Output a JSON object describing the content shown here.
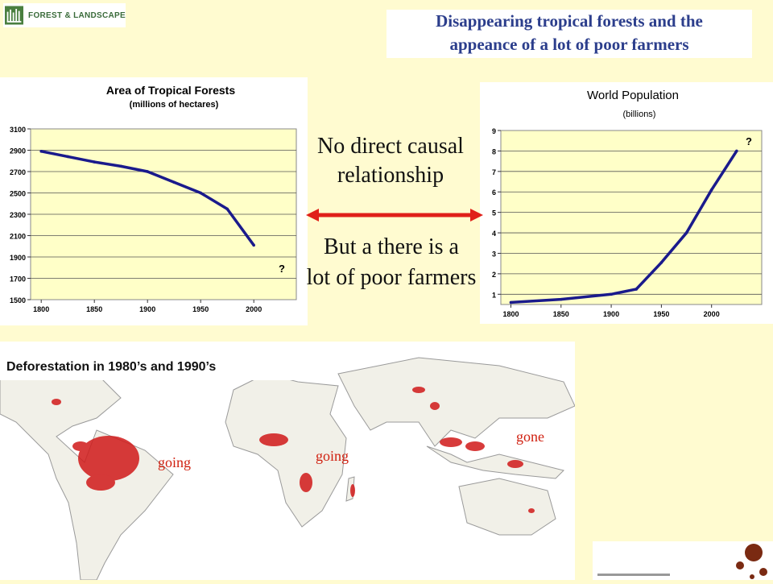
{
  "header": {
    "logo_text": "FOREST & LANDSCAPE",
    "title_line1": "Disappearing tropical forests and the",
    "title_line2": "appeance of a lot of poor farmers"
  },
  "middle": {
    "line1": "No direct causal",
    "line2": "relationship",
    "line3": "But a there is a",
    "line4": "lot of poor farmers"
  },
  "colors": {
    "background": "#fffbd0",
    "plot_bg": "#ffffc8",
    "series": "#1a1a8c",
    "title_text": "#2c3e8c",
    "arrow": "#e0201a",
    "map_labels": "#d02010"
  },
  "chart_data": [
    {
      "type": "line",
      "title": "Area of Tropical Forests",
      "subtitle": "(millions of hectares)",
      "x_ticks": [
        "1800",
        "1850",
        "1900",
        "1950",
        "2000"
      ],
      "y_ticks": [
        "3100",
        "2900",
        "2700",
        "2500",
        "2300",
        "2100",
        "1900",
        "1700",
        "1500"
      ],
      "xlim": [
        1790,
        2040
      ],
      "ylim": [
        1500,
        3100
      ],
      "grid": true,
      "annotation": "?",
      "series": [
        {
          "x": [
            1800,
            1825,
            1850,
            1875,
            1900,
            1925,
            1950,
            1975,
            2000
          ],
          "y": [
            2890,
            2840,
            2790,
            2750,
            2700,
            2600,
            2500,
            2350,
            2010
          ]
        }
      ]
    },
    {
      "type": "line",
      "title": "World Population",
      "subtitle": "(billions)",
      "x_ticks": [
        "1800",
        "1850",
        "1900",
        "1950",
        "2000"
      ],
      "y_ticks": [
        "9",
        "8",
        "7",
        "6",
        "5",
        "4",
        "3",
        "2",
        "1"
      ],
      "xlim": [
        1790,
        2050
      ],
      "ylim": [
        0.5,
        9
      ],
      "grid": true,
      "annotation": "?",
      "series": [
        {
          "x": [
            1800,
            1850,
            1900,
            1925,
            1950,
            1975,
            2000,
            2025
          ],
          "y": [
            0.6,
            0.75,
            1.0,
            1.25,
            2.55,
            4.0,
            6.1,
            8.0
          ]
        }
      ]
    }
  ],
  "map": {
    "title": "Deforestation in 1980’s and 1990’s",
    "labels": [
      "going",
      "going",
      "gone"
    ]
  }
}
